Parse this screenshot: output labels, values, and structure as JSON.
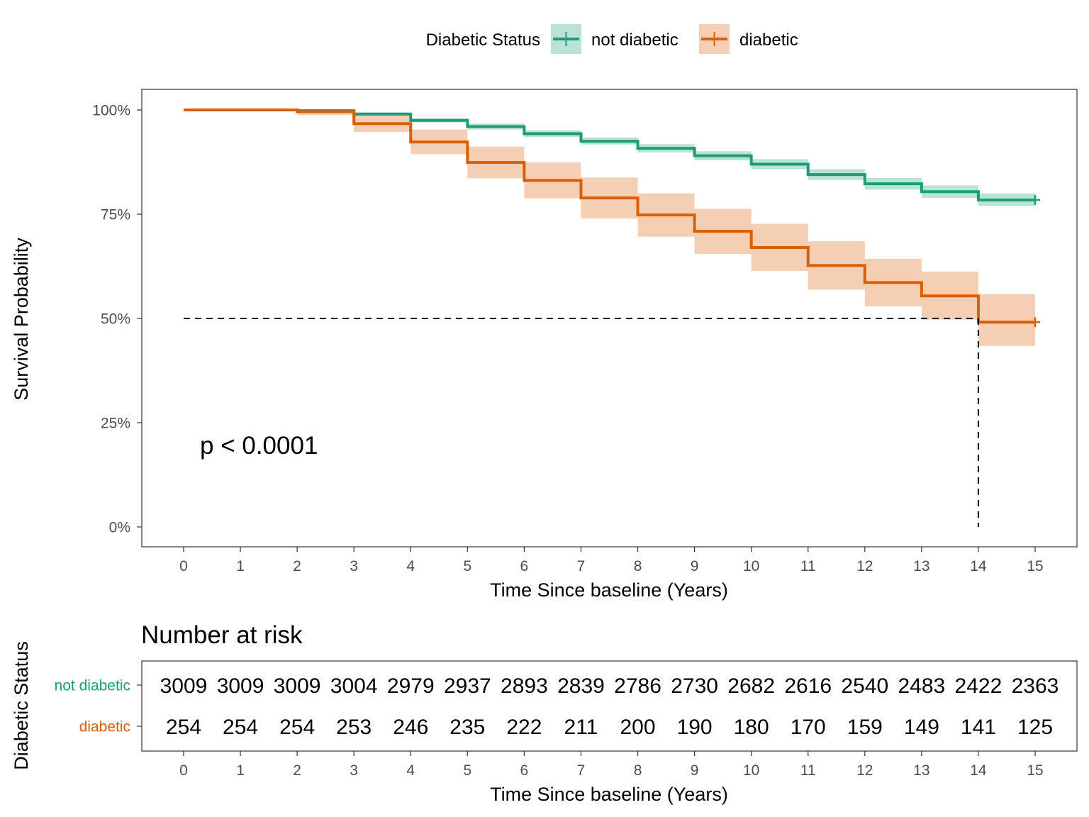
{
  "chart_data": {
    "type": "line",
    "subtype": "kaplan-meier-step",
    "xlabel": "Time Since baseline (Years)",
    "ylabel": "Survival Probability",
    "xlim": [
      0,
      15
    ],
    "ylim": [
      0,
      1
    ],
    "x_ticks": [
      0,
      1,
      2,
      3,
      4,
      5,
      6,
      7,
      8,
      9,
      10,
      11,
      12,
      13,
      14,
      15
    ],
    "x_tick_labels": [
      "0",
      "1",
      "2",
      "3",
      "4",
      "5",
      "6",
      "7",
      "8",
      "9",
      "10",
      "11",
      "12",
      "13",
      "14",
      "15"
    ],
    "y_ticks": [
      0,
      0.25,
      0.5,
      0.75,
      1.0
    ],
    "y_tick_labels": [
      "0%",
      "25%",
      "50%",
      "75%",
      "100%"
    ],
    "grid": false,
    "legend": {
      "title": "Diabetic Status",
      "placement": "top",
      "entries": [
        "not diabetic",
        "diabetic"
      ]
    },
    "annotation": "p < 0.0001",
    "median_line": {
      "y": 0.5,
      "x": 14
    },
    "series": [
      {
        "name": "not diabetic",
        "color": "#1b9e77",
        "x": [
          0,
          1,
          2,
          3,
          4,
          5,
          6,
          7,
          8,
          9,
          10,
          11,
          12,
          13,
          14,
          15
        ],
        "values": [
          1.0,
          1.0,
          0.998,
          0.99,
          0.975,
          0.96,
          0.943,
          0.925,
          0.908,
          0.89,
          0.87,
          0.845,
          0.823,
          0.804,
          0.784,
          0.784
        ],
        "ci_lower": [
          1.0,
          1.0,
          0.997,
          0.986,
          0.97,
          0.953,
          0.935,
          0.917,
          0.898,
          0.879,
          0.858,
          0.832,
          0.809,
          0.789,
          0.77,
          0.77
        ],
        "ci_upper": [
          1.0,
          1.0,
          0.999,
          0.994,
          0.98,
          0.967,
          0.951,
          0.934,
          0.918,
          0.901,
          0.882,
          0.858,
          0.837,
          0.819,
          0.8,
          0.8
        ]
      },
      {
        "name": "diabetic",
        "color": "#d95f02",
        "x": [
          0,
          1,
          2,
          3,
          4,
          5,
          6,
          7,
          8,
          9,
          10,
          11,
          12,
          13,
          14,
          15
        ],
        "values": [
          1.0,
          1.0,
          0.996,
          0.967,
          0.923,
          0.874,
          0.831,
          0.789,
          0.748,
          0.709,
          0.67,
          0.627,
          0.586,
          0.554,
          0.491,
          0.491
        ],
        "ci_lower": [
          1.0,
          1.0,
          0.988,
          0.947,
          0.894,
          0.836,
          0.788,
          0.74,
          0.696,
          0.655,
          0.614,
          0.569,
          0.529,
          0.497,
          0.434,
          0.434
        ],
        "ci_upper": [
          1.0,
          1.0,
          1.0,
          0.986,
          0.953,
          0.912,
          0.874,
          0.838,
          0.8,
          0.763,
          0.727,
          0.685,
          0.643,
          0.612,
          0.558,
          0.558
        ]
      }
    ],
    "risk_table": {
      "title": "Number at risk",
      "ylabel": "Diabetic Status",
      "xlabel": "Time Since baseline (Years)",
      "rows": [
        {
          "name": "not diabetic",
          "color": "#1b9e77",
          "values": [
            "3009",
            "3009",
            "3009",
            "3004",
            "2979",
            "2937",
            "2893",
            "2839",
            "2786",
            "2730",
            "2682",
            "2616",
            "2540",
            "2483",
            "2422",
            "2363"
          ]
        },
        {
          "name": "diabetic",
          "color": "#d95f02",
          "values": [
            "254",
            "254",
            "254",
            "253",
            "246",
            "235",
            "222",
            "211",
            "200",
            "190",
            "180",
            "170",
            "159",
            "149",
            "141",
            "125"
          ]
        }
      ]
    }
  }
}
